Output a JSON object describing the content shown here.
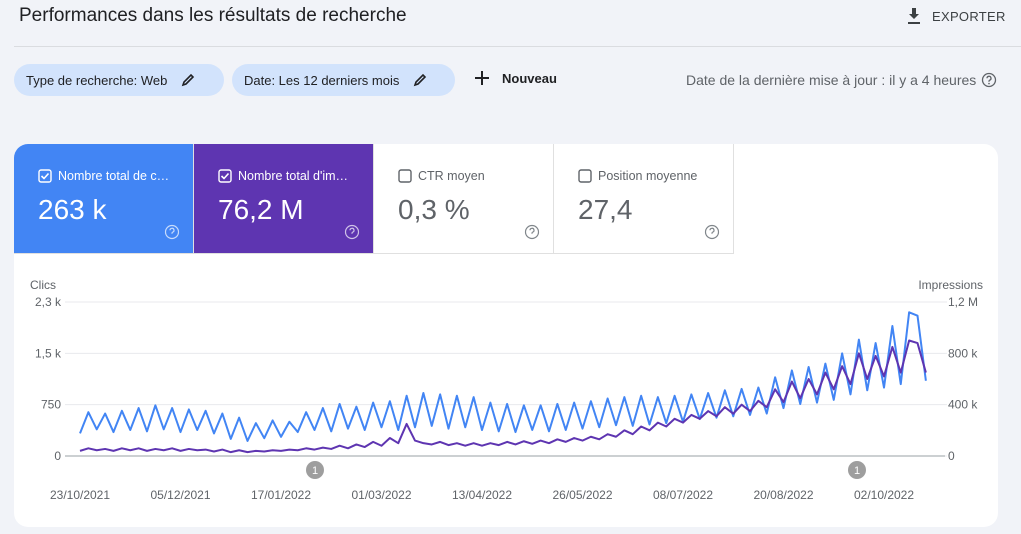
{
  "header": {
    "title": "Performances dans les résultats de recherche",
    "export": "EXPORTER"
  },
  "filters": {
    "search_type": "Type de recherche: Web",
    "date": "Date: Les 12 derniers mois",
    "new": "Nouveau",
    "updated": "Date de la dernière mise à jour : il y a 4 heures"
  },
  "metrics": [
    {
      "label": "Nombre total de c…",
      "value": "263 k",
      "checked": true,
      "color": "#4285f4"
    },
    {
      "label": "Nombre total d'im…",
      "value": "76,2 M",
      "checked": true,
      "color": "#5e35b1"
    },
    {
      "label": "CTR moyen",
      "value": "0,3 %",
      "checked": false,
      "color": "#ffffff"
    },
    {
      "label": "Position moyenne",
      "value": "27,4",
      "checked": false,
      "color": "#ffffff"
    }
  ],
  "chart_data": {
    "type": "line",
    "y_label": "Clics",
    "y2_label": "Impressions",
    "grid": true,
    "categories": [
      "23/10/2021",
      null,
      null,
      null,
      null,
      null,
      null,
      null,
      null,
      null,
      null,
      null,
      "05/12/2021",
      null,
      null,
      null,
      null,
      null,
      null,
      null,
      null,
      null,
      null,
      null,
      "17/01/2022",
      null,
      null,
      null,
      null,
      null,
      null,
      null,
      null,
      null,
      null,
      null,
      "01/03/2022",
      null,
      null,
      null,
      null,
      null,
      null,
      null,
      null,
      null,
      null,
      null,
      "13/04/2022",
      null,
      null,
      null,
      null,
      null,
      null,
      null,
      null,
      null,
      null,
      null,
      "26/05/2022",
      null,
      null,
      null,
      null,
      null,
      null,
      null,
      null,
      null,
      null,
      null,
      "08/07/2022",
      null,
      null,
      null,
      null,
      null,
      null,
      null,
      null,
      null,
      null,
      null,
      "20/08/2022",
      null,
      null,
      null,
      null,
      null,
      null,
      null,
      null,
      null,
      null,
      null,
      "02/10/2022",
      null,
      null,
      null,
      null,
      null
    ],
    "ylim": [
      0,
      2250
    ],
    "yticks": [
      0,
      750,
      {
        "value": 1500,
        "label": "1,5 k"
      },
      {
        "value": 2250,
        "label": "2,3 k"
      }
    ],
    "y2lim": [
      0,
      1200000
    ],
    "y2ticks": [
      0,
      {
        "value": 400000,
        "label": "400 k"
      },
      {
        "value": 800000,
        "label": "800 k"
      },
      {
        "value": 1200000,
        "label": "1,2 M"
      }
    ],
    "annotations": [
      "1",
      "1"
    ],
    "series": [
      {
        "color": "#4285f4",
        "values": [
          330,
          640,
          390,
          620,
          350,
          660,
          380,
          700,
          360,
          740,
          390,
          700,
          350,
          680,
          380,
          660,
          330,
          620,
          250,
          560,
          220,
          480,
          260,
          520,
          280,
          500,
          350,
          640,
          380,
          700,
          360,
          760,
          400,
          720,
          380,
          780,
          420,
          800,
          380,
          880,
          420,
          920,
          440,
          900,
          400,
          880,
          420,
          860,
          380,
          780,
          360,
          760,
          350,
          740,
          380,
          740,
          360,
          760,
          380,
          780,
          400,
          800,
          420,
          840,
          450,
          860,
          440,
          880,
          460,
          860,
          480,
          880,
          500,
          900,
          540,
          920,
          560,
          960,
          580,
          980,
          600,
          1000,
          620,
          1150,
          700,
          1250,
          760,
          1300,
          780,
          1350,
          820,
          1500,
          900,
          1700,
          960,
          1650,
          1000,
          1900,
          1050,
          2100,
          2050,
          1100
        ]
      },
      {
        "color": "#5e35b1",
        "axis": "y2",
        "values": [
          40000,
          60000,
          45000,
          55000,
          40000,
          60000,
          45000,
          60000,
          40000,
          55000,
          45000,
          60000,
          40000,
          55000,
          45000,
          50000,
          35000,
          50000,
          30000,
          45000,
          30000,
          40000,
          35000,
          45000,
          40000,
          50000,
          45000,
          60000,
          50000,
          65000,
          55000,
          80000,
          60000,
          90000,
          70000,
          110000,
          80000,
          140000,
          100000,
          250000,
          120000,
          100000,
          90000,
          110000,
          85000,
          100000,
          80000,
          100000,
          80000,
          100000,
          85000,
          110000,
          90000,
          115000,
          95000,
          120000,
          100000,
          130000,
          110000,
          140000,
          120000,
          150000,
          130000,
          170000,
          150000,
          200000,
          170000,
          230000,
          200000,
          260000,
          230000,
          290000,
          260000,
          320000,
          290000,
          350000,
          310000,
          380000,
          330000,
          400000,
          350000,
          430000,
          380000,
          520000,
          420000,
          580000,
          450000,
          600000,
          480000,
          650000,
          520000,
          700000,
          560000,
          800000,
          600000,
          780000,
          620000,
          850000,
          650000,
          900000,
          880000,
          650000
        ]
      }
    ]
  }
}
